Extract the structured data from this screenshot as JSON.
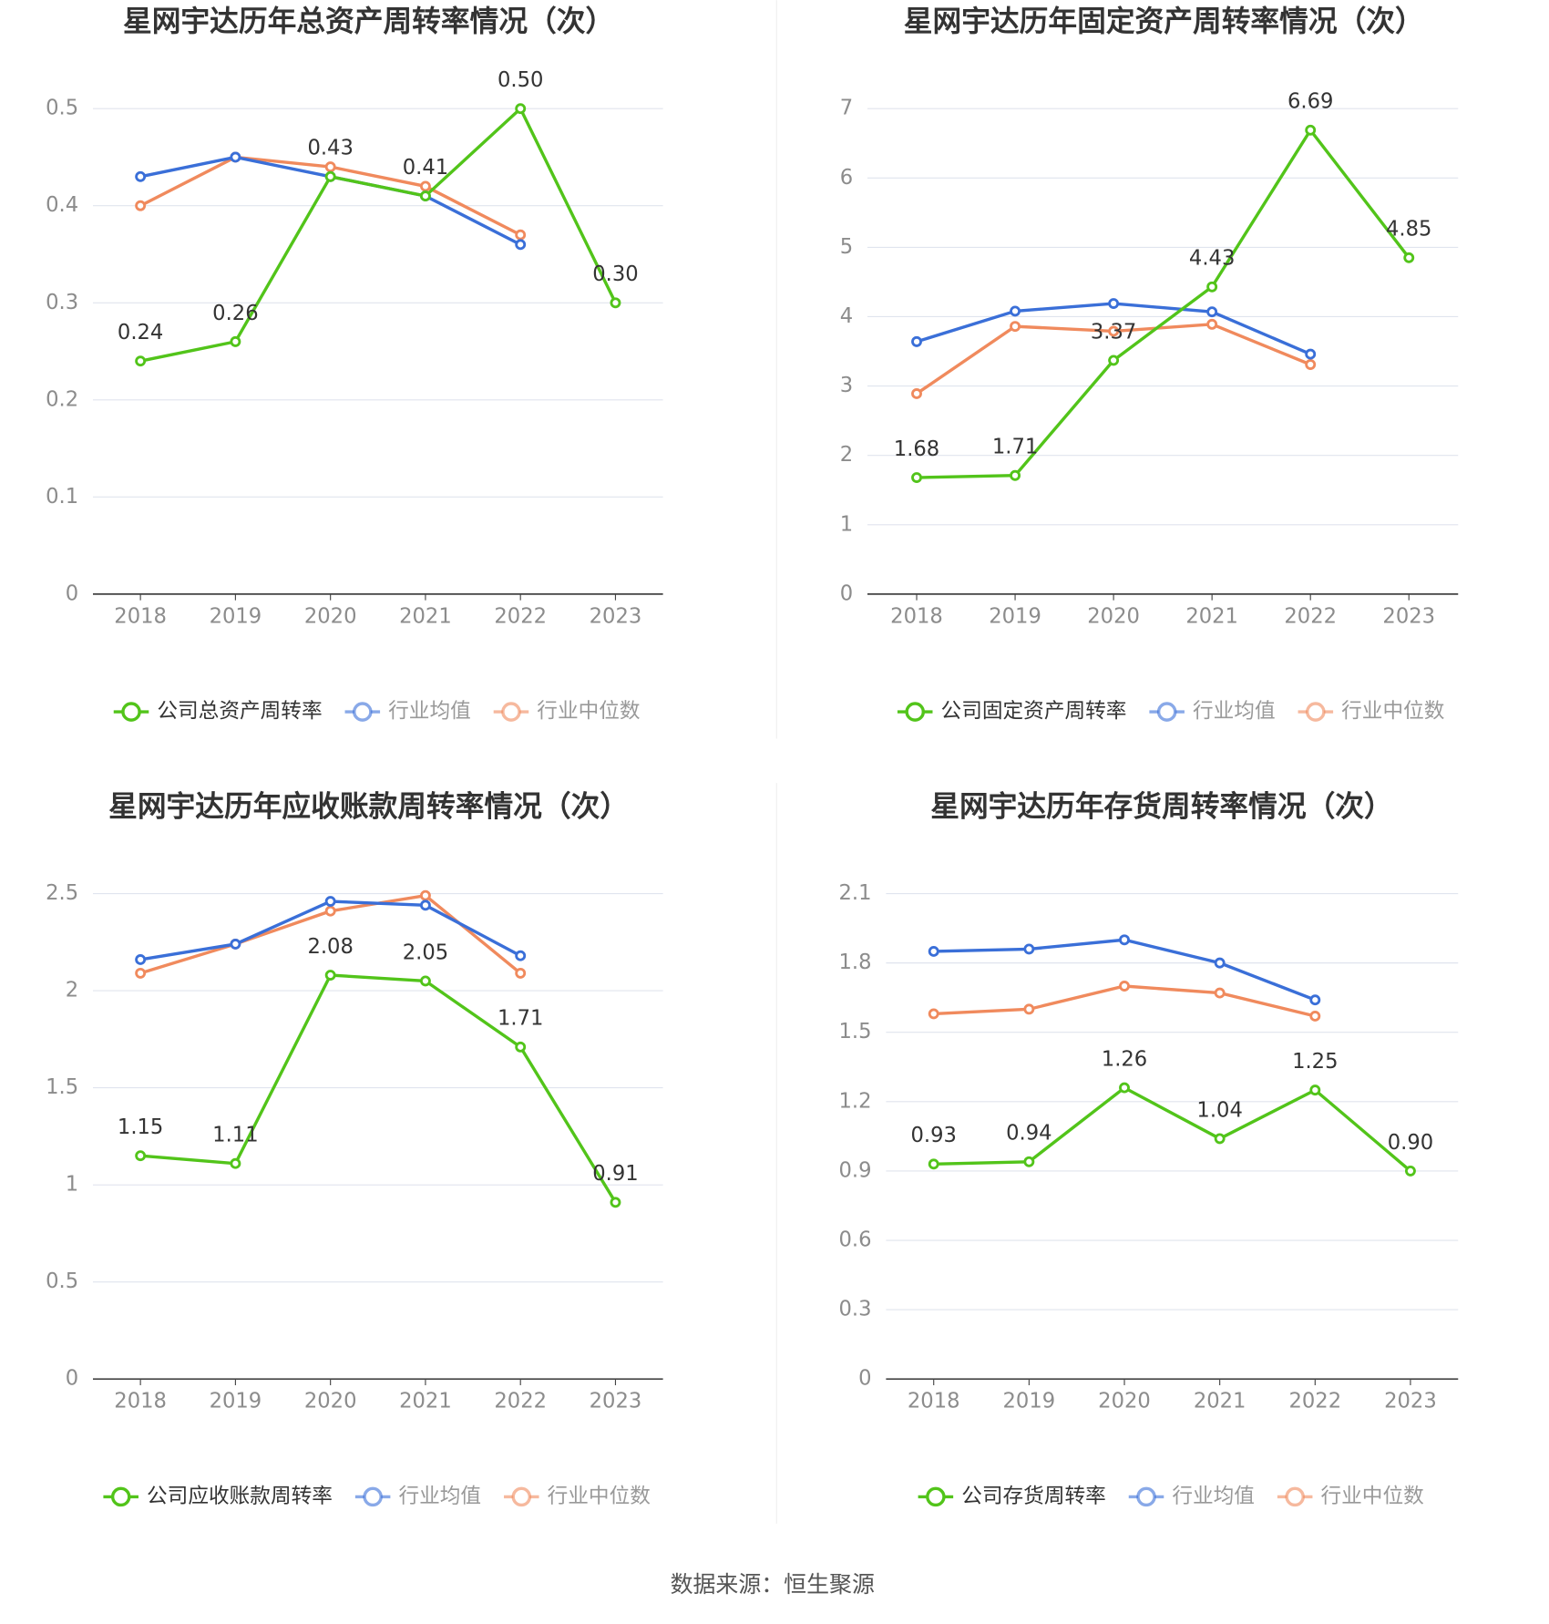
{
  "chart_data": [
    {
      "type": "line",
      "title": "星网宇达历年总资产周转率情况（次）",
      "categories": [
        "2018",
        "2019",
        "2020",
        "2021",
        "2022",
        "2023"
      ],
      "ylim": [
        0,
        0.5
      ],
      "yticks": [
        0,
        0.1,
        0.2,
        0.3,
        0.4,
        0.5
      ],
      "grid": true,
      "series": [
        {
          "name": "公司总资产周转率",
          "color": "#52c41a",
          "values": [
            0.24,
            0.26,
            0.43,
            0.41,
            0.5,
            0.3
          ],
          "value_labels": [
            "0.24",
            "0.26",
            "0.43",
            "0.41",
            "0.50",
            "0.30"
          ]
        },
        {
          "name": "行业均值",
          "color": "#3a6fd8",
          "values": [
            0.43,
            0.45,
            0.43,
            0.41,
            0.36,
            null
          ]
        },
        {
          "name": "行业中位数",
          "color": "#f08a5d",
          "values": [
            0.4,
            0.45,
            0.44,
            0.42,
            0.37,
            null
          ]
        }
      ]
    },
    {
      "type": "line",
      "title": "星网宇达历年固定资产周转率情况（次）",
      "categories": [
        "2018",
        "2019",
        "2020",
        "2021",
        "2022",
        "2023"
      ],
      "ylim": [
        0,
        7
      ],
      "yticks": [
        0,
        1,
        2,
        3,
        4,
        5,
        6,
        7
      ],
      "grid": true,
      "series": [
        {
          "name": "公司固定资产周转率",
          "color": "#52c41a",
          "values": [
            1.68,
            1.71,
            3.37,
            4.43,
            6.69,
            4.85
          ],
          "value_labels": [
            "1.68",
            "1.71",
            "3.37",
            "4.43",
            "6.69",
            "4.85"
          ]
        },
        {
          "name": "行业均值",
          "color": "#3a6fd8",
          "values": [
            3.64,
            4.08,
            4.19,
            4.07,
            3.46,
            null
          ]
        },
        {
          "name": "行业中位数",
          "color": "#f08a5d",
          "values": [
            2.89,
            3.86,
            3.79,
            3.89,
            3.31,
            null
          ]
        }
      ]
    },
    {
      "type": "line",
      "title": "星网宇达历年应收账款周转率情况（次）",
      "categories": [
        "2018",
        "2019",
        "2020",
        "2021",
        "2022",
        "2023"
      ],
      "ylim": [
        0,
        2.5
      ],
      "yticks": [
        0,
        0.5,
        1,
        1.5,
        2,
        2.5
      ],
      "grid": true,
      "series": [
        {
          "name": "公司应收账款周转率",
          "color": "#52c41a",
          "values": [
            1.15,
            1.11,
            2.08,
            2.05,
            1.71,
            0.91
          ],
          "value_labels": [
            "1.15",
            "1.11",
            "2.08",
            "2.05",
            "1.71",
            "0.91"
          ]
        },
        {
          "name": "行业均值",
          "color": "#3a6fd8",
          "values": [
            2.16,
            2.24,
            2.46,
            2.44,
            2.18,
            null
          ]
        },
        {
          "name": "行业中位数",
          "color": "#f08a5d",
          "values": [
            2.09,
            2.24,
            2.41,
            2.49,
            2.09,
            null
          ]
        }
      ]
    },
    {
      "type": "line",
      "title": "星网宇达历年存货周转率情况（次）",
      "categories": [
        "2018",
        "2019",
        "2020",
        "2021",
        "2022",
        "2023"
      ],
      "ylim": [
        0,
        2.1
      ],
      "yticks": [
        0,
        0.3,
        0.6,
        0.9,
        1.2,
        1.5,
        1.8,
        2.1
      ],
      "grid": true,
      "series": [
        {
          "name": "公司存货周转率",
          "color": "#52c41a",
          "values": [
            0.93,
            0.94,
            1.26,
            1.04,
            1.25,
            0.9
          ],
          "value_labels": [
            "0.93",
            "0.94",
            "1.26",
            "1.04",
            "1.25",
            "0.90"
          ]
        },
        {
          "name": "行业均值",
          "color": "#3a6fd8",
          "values": [
            1.85,
            1.86,
            1.9,
            1.8,
            1.64,
            null
          ]
        },
        {
          "name": "行业中位数",
          "color": "#f08a5d",
          "values": [
            1.58,
            1.6,
            1.7,
            1.67,
            1.57,
            null
          ]
        }
      ]
    }
  ],
  "source": "数据来源：恒生聚源"
}
